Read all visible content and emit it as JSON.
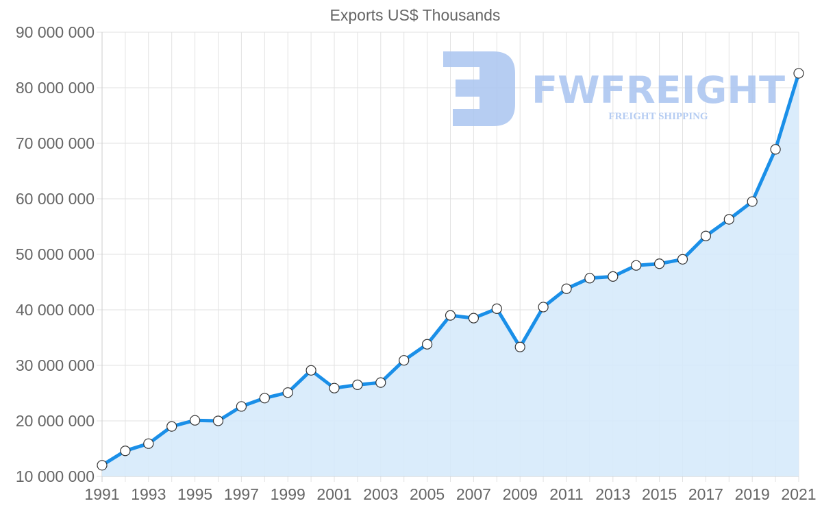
{
  "chart_data": {
    "type": "area",
    "title": "Exports US$ Thousands",
    "xlabel": "",
    "ylabel": "",
    "ylim": [
      10000000,
      90000000
    ],
    "y_ticks": [
      "10 000 000",
      "20 000 000",
      "30 000 000",
      "40 000 000",
      "50 000 000",
      "60 000 000",
      "70 000 000",
      "80 000 000",
      "90 000 000"
    ],
    "x_tick_labels": [
      "1991",
      "1993",
      "1995",
      "1997",
      "1999",
      "2001",
      "2003",
      "2005",
      "2007",
      "2009",
      "2011",
      "2013",
      "2015",
      "2017",
      "2019",
      "2021"
    ],
    "grid": true,
    "legend": null,
    "x": [
      1991,
      1992,
      1993,
      1994,
      1995,
      1996,
      1997,
      1998,
      1999,
      2000,
      2001,
      2002,
      2003,
      2004,
      2005,
      2006,
      2007,
      2008,
      2009,
      2010,
      2011,
      2012,
      2013,
      2014,
      2015,
      2016,
      2017,
      2018,
      2019,
      2020,
      2021
    ],
    "series": [
      {
        "name": "Exports US$ Thousands",
        "color": "#1a8fe8",
        "fill": "#d6eafb",
        "values": [
          12000000,
          14600000,
          15900000,
          19000000,
          20100000,
          20000000,
          22600000,
          24100000,
          25100000,
          29100000,
          25900000,
          26500000,
          26900000,
          30900000,
          33800000,
          39000000,
          38500000,
          40200000,
          33300000,
          40500000,
          43800000,
          45700000,
          46000000,
          48000000,
          48300000,
          49100000,
          53300000,
          56300000,
          59500000,
          68900000,
          82600000
        ]
      }
    ]
  },
  "watermark": {
    "brand": "FWFREIGHT",
    "tagline": "FREIGHT SHIPPING",
    "color": "#a9c4f0"
  }
}
